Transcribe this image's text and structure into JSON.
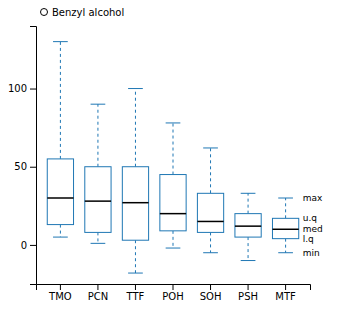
{
  "chart_data": {
    "type": "box",
    "categories": [
      "TMO",
      "PCN",
      "TTF",
      "POH",
      "SOH",
      "PSH",
      "MTF"
    ],
    "series": [
      {
        "name": "Benzyl alcohol",
        "marker": "circle",
        "min": [
          5,
          1,
          -18,
          -2,
          -5,
          -10,
          -5
        ],
        "lq": [
          13,
          8,
          3,
          9,
          8,
          5,
          4
        ],
        "med": [
          30,
          28,
          27,
          20,
          15,
          12,
          10
        ],
        "uq": [
          55,
          50,
          50,
          45,
          33,
          20,
          17
        ],
        "max": [
          130,
          90,
          100,
          78,
          62,
          33,
          30
        ]
      }
    ],
    "annotations": [
      {
        "text": "max",
        "y": 30
      },
      {
        "text": "u.q",
        "y": 17
      },
      {
        "text": "med",
        "y": 10
      },
      {
        "text": "l.q",
        "y": 4
      },
      {
        "text": "min",
        "y": -5
      }
    ],
    "ylim": [
      -25,
      140
    ],
    "yticks": [
      0,
      50,
      100
    ],
    "grid": false,
    "legend": "upper left"
  }
}
